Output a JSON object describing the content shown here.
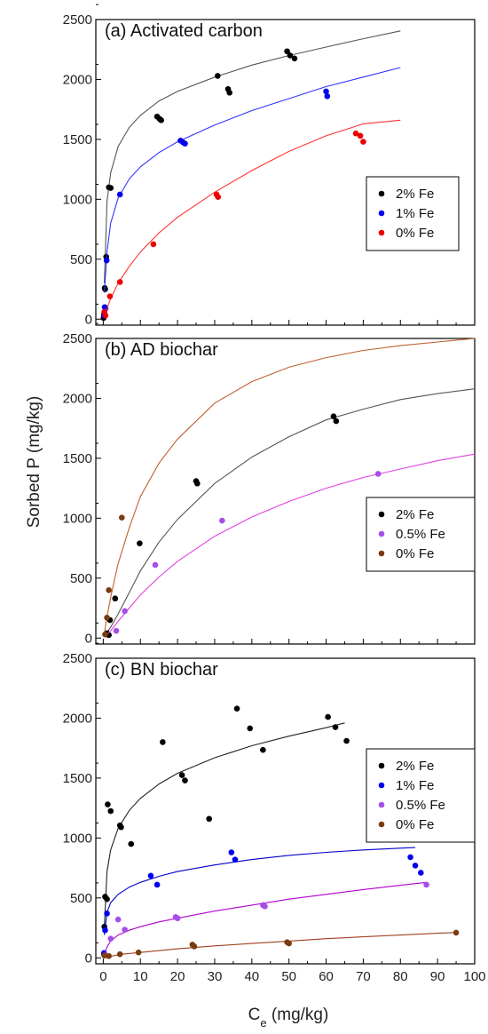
{
  "figure": {
    "ylabel": "Sorbed P (mg/kg)",
    "xlabel_main": "C",
    "xlabel_sub": "e",
    "xlabel_unit": " (mg/kg)"
  },
  "chart_data": [
    {
      "type": "scatter",
      "title": "(a) Activated carbon",
      "xlim": [
        -2,
        100
      ],
      "ylim": [
        -50,
        2500
      ],
      "yticks": [
        0,
        500,
        1000,
        1500,
        2000,
        2500
      ],
      "xticks": [],
      "legend_position": "right-middle",
      "series": [
        {
          "name": "2% Fe",
          "color": "#000000",
          "fit_color": "#555555",
          "x": [
            0.1,
            0.2,
            0.4,
            0.5,
            0.8,
            1.5,
            2.0,
            14.5,
            15.2,
            15.6,
            30.8,
            33.6,
            34.0,
            49.5,
            50.3,
            51.5
          ],
          "y": [
            10,
            40,
            260,
            250,
            520,
            1100,
            1095,
            1690,
            1670,
            1660,
            2030,
            1920,
            1890,
            2235,
            2200,
            2175
          ],
          "fit_x": [
            0.3,
            1,
            2,
            4,
            7,
            10,
            15,
            20,
            30,
            40,
            50,
            60,
            70,
            80
          ],
          "fit_y": [
            300,
            980,
            1220,
            1440,
            1600,
            1700,
            1820,
            1900,
            2020,
            2120,
            2200,
            2270,
            2340,
            2405
          ]
        },
        {
          "name": "1% Fe",
          "color": "#0000ee",
          "fit_color": "#3333ff",
          "x": [
            0.2,
            0.4,
            0.6,
            0.9,
            4.5,
            20.8,
            21.5,
            22.0,
            60.0,
            60.3
          ],
          "y": [
            30,
            100,
            90,
            490,
            1040,
            1490,
            1475,
            1465,
            1900,
            1860
          ],
          "fit_x": [
            0.3,
            1,
            2,
            4,
            7,
            10,
            15,
            20,
            30,
            40,
            50,
            60,
            70,
            80
          ],
          "fit_y": [
            220,
            560,
            800,
            1010,
            1170,
            1270,
            1390,
            1480,
            1620,
            1740,
            1840,
            1940,
            2020,
            2100
          ]
        },
        {
          "name": "0% Fe",
          "color": "#ee0000",
          "fit_color": "#ff3333",
          "x": [
            0.3,
            0.6,
            1.8,
            4.5,
            13.5,
            30.5,
            30.9,
            68.0,
            69.2,
            70.0
          ],
          "y": [
            60,
            30,
            190,
            310,
            625,
            1040,
            1020,
            1550,
            1530,
            1480
          ],
          "fit_x": [
            0.5,
            1,
            2,
            4,
            7,
            10,
            15,
            20,
            30,
            40,
            50,
            60,
            70,
            80
          ],
          "fit_y": [
            40,
            90,
            170,
            300,
            440,
            560,
            720,
            850,
            1060,
            1240,
            1400,
            1530,
            1630,
            1660
          ]
        }
      ]
    },
    {
      "type": "scatter",
      "title": "(b) AD biochar",
      "xlim": [
        -2,
        100
      ],
      "ylim": [
        -50,
        2500
      ],
      "yticks": [
        0,
        500,
        1000,
        1500,
        2000,
        2500
      ],
      "xticks": [],
      "legend_position": "right-middle",
      "series": [
        {
          "name": "2% Fe",
          "color": "#000000",
          "fit_color": "#555555",
          "x": [
            1.0,
            1.5,
            1.8,
            3.2,
            9.8,
            25.0,
            25.3,
            62.0,
            62.7
          ],
          "y": [
            40,
            25,
            150,
            330,
            790,
            1310,
            1290,
            1850,
            1810
          ],
          "fit_x": [
            0.5,
            2,
            4,
            7,
            10,
            15,
            20,
            30,
            40,
            50,
            60,
            70,
            80,
            90,
            100
          ],
          "fit_y": [
            20,
            90,
            200,
            380,
            560,
            800,
            990,
            1290,
            1510,
            1680,
            1820,
            1910,
            1990,
            2040,
            2080
          ]
        },
        {
          "name": "0.5% Fe",
          "color": "#a64ee8",
          "fit_color": "#e040e0",
          "x": [
            3.5,
            5.8,
            14.0,
            32.0,
            74.0
          ],
          "y": [
            60,
            225,
            610,
            980,
            1370
          ],
          "fit_x": [
            0.5,
            2,
            4,
            7,
            10,
            15,
            20,
            30,
            40,
            50,
            60,
            70,
            80,
            90,
            100
          ],
          "fit_y": [
            10,
            60,
            140,
            250,
            360,
            510,
            640,
            850,
            1010,
            1140,
            1250,
            1340,
            1410,
            1480,
            1535
          ]
        },
        {
          "name": "0% Fe",
          "color": "#7b3b10",
          "fit_color": "#c06030",
          "x": [
            0.5,
            1.0,
            1.5,
            5.0
          ],
          "y": [
            30,
            170,
            400,
            1005
          ],
          "fit_x": [
            0.2,
            1,
            2,
            4,
            7,
            10,
            15,
            20,
            30,
            40,
            50,
            60,
            70,
            80,
            90,
            100
          ],
          "fit_y": [
            20,
            180,
            340,
            620,
            920,
            1180,
            1460,
            1660,
            1960,
            2140,
            2260,
            2340,
            2400,
            2440,
            2470,
            2500
          ]
        }
      ]
    },
    {
      "type": "scatter",
      "title": "(c) BN biochar",
      "xlim": [
        -2,
        100
      ],
      "ylim": [
        -50,
        2500
      ],
      "yticks": [
        0,
        500,
        1000,
        1500,
        2000,
        2500
      ],
      "xticks": [
        0,
        10,
        20,
        30,
        40,
        50,
        60,
        70,
        80,
        90,
        100
      ],
      "legend_position": "right-middle",
      "series": [
        {
          "name": "2% Fe",
          "color": "#000000",
          "fit_color": "#222222",
          "x": [
            0.2,
            0.3,
            0.5,
            1.0,
            1.2,
            2.0,
            4.5,
            4.8,
            7.5,
            16.0,
            21.2,
            22.0,
            28.5,
            36.0,
            39.5,
            43.0,
            60.5,
            62.5,
            65.5
          ],
          "y": [
            30,
            260,
            510,
            490,
            1280,
            1225,
            1105,
            1090,
            950,
            1800,
            1525,
            1480,
            1160,
            2080,
            1915,
            1735,
            2010,
            1925,
            1810
          ],
          "fit_x": [
            0.3,
            1,
            2,
            4,
            7,
            10,
            15,
            20,
            30,
            40,
            50,
            60,
            65
          ],
          "fit_y": [
            260,
            720,
            900,
            1080,
            1230,
            1330,
            1450,
            1540,
            1670,
            1770,
            1850,
            1920,
            1960
          ]
        },
        {
          "name": "1% Fe",
          "color": "#0000ee",
          "fit_color": "#0000cc",
          "x": [
            0.2,
            0.5,
            1.0,
            12.8,
            14.5,
            34.5,
            35.5,
            82.7,
            84.0,
            85.5
          ],
          "y": [
            40,
            230,
            370,
            685,
            610,
            880,
            820,
            840,
            770,
            710
          ],
          "fit_x": [
            0.3,
            1,
            2,
            4,
            7,
            10,
            15,
            20,
            30,
            40,
            50,
            60,
            70,
            80,
            84
          ],
          "fit_y": [
            190,
            380,
            460,
            530,
            590,
            630,
            680,
            720,
            775,
            820,
            855,
            880,
            900,
            915,
            920
          ]
        },
        {
          "name": "0.5% Fe",
          "color": "#a64ee8",
          "fit_color": "#b000d0",
          "x": [
            0.5,
            2.0,
            4.0,
            5.8,
            19.5,
            20.0,
            43.0,
            43.5,
            87.0
          ],
          "y": [
            20,
            160,
            320,
            235,
            340,
            330,
            440,
            430,
            610
          ],
          "fit_x": [
            0.5,
            1,
            2,
            4,
            7,
            10,
            15,
            20,
            30,
            40,
            50,
            60,
            70,
            80,
            87
          ],
          "fit_y": [
            40,
            90,
            140,
            190,
            230,
            260,
            300,
            330,
            390,
            440,
            490,
            530,
            570,
            605,
            630
          ]
        },
        {
          "name": "0% Fe",
          "color": "#7b3b10",
          "fit_color": "#a04020",
          "x": [
            0.3,
            1.5,
            4.5,
            9.5,
            24.0,
            24.5,
            49.5,
            50.0,
            95.0
          ],
          "y": [
            20,
            15,
            30,
            45,
            110,
            95,
            130,
            120,
            210
          ],
          "fit_x": [
            0.5,
            5,
            10,
            20,
            30,
            40,
            50,
            60,
            70,
            80,
            90,
            95
          ],
          "fit_y": [
            5,
            30,
            45,
            75,
            100,
            120,
            140,
            160,
            175,
            190,
            205,
            212
          ]
        }
      ]
    }
  ]
}
